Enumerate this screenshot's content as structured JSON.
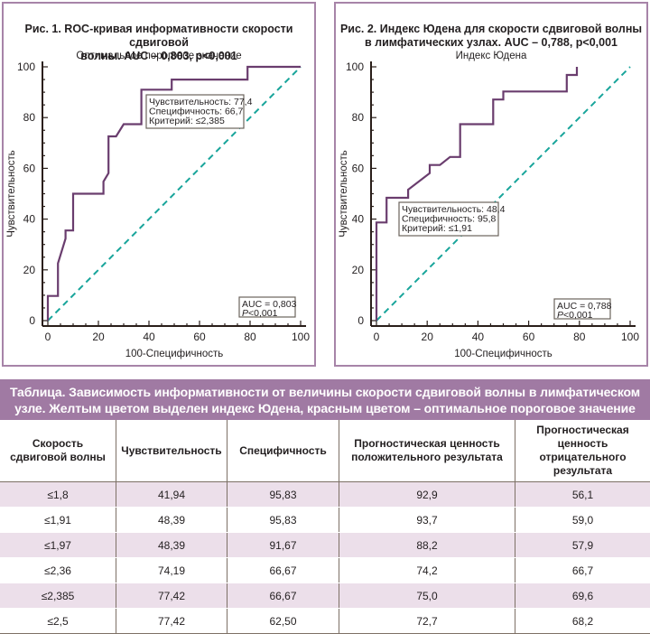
{
  "colors": {
    "curve": "#6a3d6e",
    "diagonal": "#19a59b",
    "panel_border": "#a784a8",
    "table_header_bg": "#a07aa3",
    "row_highlight": "#ecdfea"
  },
  "chart_data": [
    {
      "type": "line",
      "title": "Рис. 1. ROC-кривая информативности скорости сдвиговой волны. AUC – 0,803, p<0,001",
      "title_line1": "Рис. 1. ROC-кривая информативности скорости сдвиговой",
      "title_line2": "волны. AUC – 0,803, p<0,001",
      "subtitle": "Оптимальное пороговое значение",
      "xlabel": "100-Специфичность",
      "ylabel": "Чувствительность",
      "xlim": [
        0,
        100
      ],
      "ylim": [
        0,
        100
      ],
      "xticks": [
        "0",
        "20",
        "40",
        "60",
        "80",
        "100"
      ],
      "yticks": [
        "0",
        "20",
        "40",
        "60",
        "80",
        "100"
      ],
      "series": [
        {
          "name": "ROC",
          "x": [
            0,
            0,
            4,
            4,
            7,
            7,
            10,
            10,
            22,
            22,
            24,
            24,
            27,
            30,
            37,
            37,
            49,
            49,
            79,
            79,
            100
          ],
          "y": [
            0,
            9.7,
            9.7,
            22.6,
            32.3,
            35.5,
            35.5,
            50,
            50,
            54.8,
            58.1,
            72.6,
            72.6,
            77.4,
            77.4,
            91,
            91,
            95,
            95,
            100,
            100
          ]
        },
        {
          "name": "diagonal",
          "x": [
            0,
            100
          ],
          "y": [
            0,
            100
          ]
        }
      ],
      "annotation": {
        "lines": [
          "Чувствительность: 77,4",
          "Специфичность: 66,7",
          "Критерий: ≤2,385"
        ]
      },
      "stats_box": {
        "line1": "AUC = 0,803",
        "line2_italic": "P",
        "line2_rest": "<0,001"
      }
    },
    {
      "type": "line",
      "title": "Рис. 2. Индекс Юдена для скорости сдвиговой волны в лимфатических узлах. AUC – 0,788, p<0,001",
      "title_line1": "Рис. 2. Индекс Юдена для скорости сдвиговой волны",
      "title_line2": "в лимфатических узлах. AUC – 0,788, p<0,001",
      "subtitle": "Индекс Юдена",
      "xlabel": "100-Специфичность",
      "ylabel": "Чувствительность",
      "xlim": [
        0,
        100
      ],
      "ylim": [
        0,
        100
      ],
      "xticks": [
        "0",
        "20",
        "40",
        "60",
        "80",
        "100"
      ],
      "yticks": [
        "0",
        "20",
        "40",
        "60",
        "80",
        "100"
      ],
      "series": [
        {
          "name": "ROC",
          "x": [
            0,
            0,
            4,
            4,
            12.5,
            12.5,
            21,
            21,
            25,
            29,
            33,
            33,
            46,
            46,
            50,
            50,
            75,
            75,
            79,
            79
          ],
          "y": [
            0,
            38.7,
            38.7,
            48.4,
            48.4,
            51.6,
            58.1,
            61.3,
            61.3,
            64.5,
            64.5,
            77.4,
            77.4,
            87.1,
            87.1,
            90.3,
            90.3,
            96.8,
            96.8,
            100
          ]
        },
        {
          "name": "diagonal",
          "x": [
            0,
            100
          ],
          "y": [
            0,
            100
          ]
        }
      ],
      "annotation": {
        "lines": [
          "Чувствительность: 48,4",
          "Специфичность: 95,8",
          "Критерий: ≤1,91"
        ]
      },
      "stats_box": {
        "line1": "AUC = 0,788",
        "line2_italic": "P",
        "line2_rest": "<0,001"
      }
    }
  ],
  "table": {
    "caption": "Таблица. Зависимость информативности от величины скорости сдвиговой волны в лимфатическом узле. Желтым цветом выделен индекс Юдена, красным цветом – оптимальное пороговое значение",
    "headers": [
      "Скорость сдвиговой волны",
      "Чувствительность",
      "Специфичность",
      "Прогностическая ценность положительного результата",
      "Прогностическая ценность отрицательного результата"
    ],
    "rows": [
      [
        "≤1,8",
        "41,94",
        "95,83",
        "92,9",
        "56,1"
      ],
      [
        "≤1,91",
        "48,39",
        "95,83",
        "93,7",
        "59,0"
      ],
      [
        "≤1,97",
        "48,39",
        "91,67",
        "88,2",
        "57,9"
      ],
      [
        "≤2,36",
        "74,19",
        "66,67",
        "74,2",
        "66,7"
      ],
      [
        "≤2,385",
        "77,42",
        "66,67",
        "75,0",
        "69,6"
      ],
      [
        "≤2,5",
        "77,42",
        "62,50",
        "72,7",
        "68,2"
      ]
    ]
  }
}
